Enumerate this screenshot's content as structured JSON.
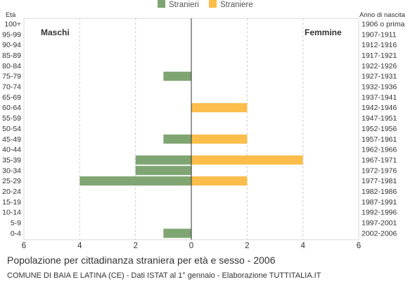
{
  "chart_data": {
    "type": "bar",
    "title": "Popolazione per cittadinanza straniera per età e sesso - 2006",
    "subtitle": "COMUNE DI BAIA E LATINA (CE) - Dati ISTAT al 1° gennaio - Elaborazione TUTTITALIA.IT",
    "left_axis_title": "Età",
    "right_axis_title": "Anno di nascita",
    "left_side_label": "Maschi",
    "right_side_label": "Femmine",
    "xlim": [
      -6,
      6
    ],
    "x_ticks": [
      "6",
      "4",
      "2",
      "0",
      "2",
      "4",
      "6"
    ],
    "age_groups": [
      "100+",
      "95-99",
      "90-94",
      "85-89",
      "80-84",
      "75-79",
      "70-74",
      "65-69",
      "60-64",
      "55-59",
      "50-54",
      "45-49",
      "40-44",
      "35-39",
      "30-34",
      "25-29",
      "20-24",
      "15-19",
      "10-14",
      "5-9",
      "0-4"
    ],
    "birth_years": [
      "1906 o prima",
      "1907-1911",
      "1912-1916",
      "1917-1921",
      "1922-1926",
      "1927-1931",
      "1932-1936",
      "1937-1941",
      "1942-1946",
      "1947-1951",
      "1952-1956",
      "1957-1961",
      "1962-1966",
      "1967-1971",
      "1972-1976",
      "1977-1981",
      "1982-1986",
      "1987-1991",
      "1992-1996",
      "1997-2001",
      "2002-2006"
    ],
    "series": [
      {
        "name": "Stranieri",
        "color": "#7fa572",
        "values": [
          0,
          0,
          0,
          0,
          0,
          1,
          0,
          0,
          0,
          0,
          0,
          1,
          0,
          2,
          2,
          4,
          0,
          0,
          0,
          0,
          1
        ]
      },
      {
        "name": "Straniere",
        "color": "#fcbd4a",
        "values": [
          0,
          0,
          0,
          0,
          0,
          0,
          0,
          0,
          2,
          0,
          0,
          2,
          0,
          4,
          0,
          2,
          0,
          0,
          0,
          0,
          0
        ]
      }
    ],
    "grid": true,
    "legend_position": "top-center"
  }
}
